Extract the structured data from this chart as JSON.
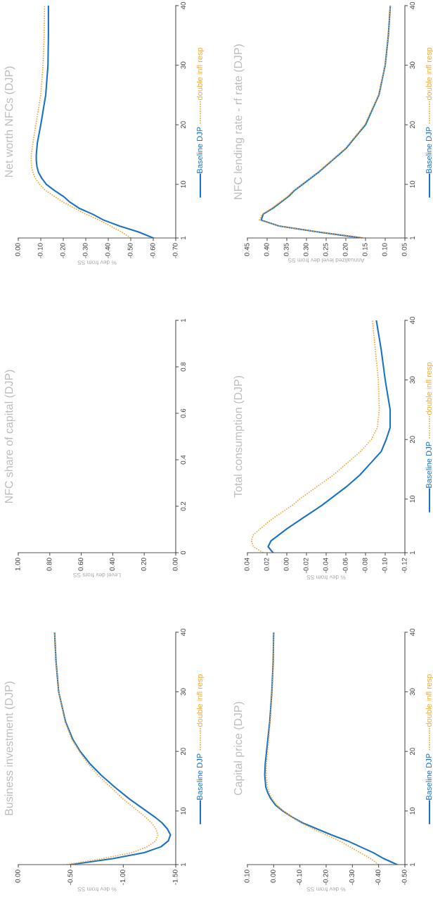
{
  "chart_data": [
    {
      "type": "line",
      "title": "Business investment (DJP)",
      "xlabel": "% dev from SS",
      "legend": "right",
      "ylim": [
        1,
        40
      ],
      "yticks": [
        1,
        10,
        20,
        30,
        40
      ],
      "xlim": [
        0,
        -1.5
      ],
      "xticks": [
        {
          "value": -1.5,
          "label": "-1.50"
        },
        {
          "value": -1.0,
          "label": "-1.00"
        },
        {
          "value": -0.5,
          "label": "-0.50"
        },
        {
          "value": 0,
          "label": "0.00"
        }
      ],
      "series": [
        {
          "name": "Baseline DJP",
          "color": "#1b72c2",
          "line_style": "solid",
          "x": [
            -0.5,
            -0.9,
            -1.2,
            -1.36,
            -1.43,
            -1.45,
            -1.42,
            -1.37,
            -1.3,
            -1.22,
            -1.06,
            -0.92,
            -0.79,
            -0.68,
            -0.59,
            -0.52,
            -0.45,
            -0.385,
            -0.36,
            -0.346
          ],
          "values": [
            1,
            2,
            3,
            4,
            5,
            6,
            7,
            8,
            9,
            10,
            12,
            14,
            16,
            18,
            20,
            22,
            25,
            30,
            35,
            40
          ]
        },
        {
          "name": "double infl resp",
          "color": "#f2a93b",
          "line_style": "dotted",
          "x": [
            -0.46,
            -0.8,
            -1.08,
            -1.23,
            -1.31,
            -1.33,
            -1.31,
            -1.27,
            -1.21,
            -1.14,
            -1.0,
            -0.88,
            -0.76,
            -0.66,
            -0.58,
            -0.51,
            -0.445,
            -0.385,
            -0.36,
            -0.346
          ],
          "values": [
            1,
            2,
            3,
            4,
            5,
            6,
            7,
            8,
            9,
            10,
            12,
            14,
            16,
            18,
            20,
            22,
            25,
            30,
            35,
            40
          ]
        }
      ]
    },
    {
      "type": "line",
      "title": "NFC share of capital (DJP)",
      "xlabel": "Level dev from SS",
      "ylim": [
        0,
        1
      ],
      "yticks": [
        0,
        0.2,
        0.4,
        0.6,
        0.8,
        1
      ],
      "xlim": [
        1,
        0
      ],
      "xticks": [
        {
          "value": 0,
          "label": "0.00"
        },
        {
          "value": 0.2,
          "label": "0.20"
        },
        {
          "value": 0.4,
          "label": "0.40"
        },
        {
          "value": 0.6,
          "label": "0.60"
        },
        {
          "value": 0.8,
          "label": "0.80"
        },
        {
          "value": 1,
          "label": "1.00"
        }
      ]
    },
    {
      "type": "line",
      "title": "Net worth NFCs (DJP)",
      "xlabel": "% dev from SS",
      "legend": "right",
      "ylim": [
        1,
        40
      ],
      "yticks": [
        1,
        10,
        20,
        30,
        40
      ],
      "xlim": [
        0,
        -0.7
      ],
      "xticks": [
        {
          "value": -0.7,
          "label": "-0.70"
        },
        {
          "value": -0.6,
          "label": "-0.60"
        },
        {
          "value": -0.5,
          "label": "-0.50"
        },
        {
          "value": -0.4,
          "label": "-0.40"
        },
        {
          "value": -0.3,
          "label": "-0.30"
        },
        {
          "value": -0.2,
          "label": "-0.20"
        },
        {
          "value": -0.1,
          "label": "-0.10"
        },
        {
          "value": 0,
          "label": "0.00"
        }
      ],
      "series": [
        {
          "name": "Baseline DJP",
          "color": "#1b72c2",
          "line_style": "solid",
          "x": [
            -0.6,
            -0.535,
            -0.45,
            -0.38,
            -0.33,
            -0.27,
            -0.23,
            -0.2,
            -0.16,
            -0.125,
            -0.105,
            -0.09,
            -0.083,
            -0.08,
            -0.08,
            -0.085,
            -0.1,
            -0.122,
            -0.132,
            -0.134,
            -0.134
          ],
          "values": [
            1,
            2,
            3,
            4,
            5,
            6,
            7,
            8,
            9,
            10,
            11,
            12,
            13,
            14,
            15,
            17,
            20,
            25,
            30,
            35,
            40
          ]
        },
        {
          "name": "double infl resp",
          "color": "#f2a93b",
          "line_style": "dotted",
          "x": [
            -0.5,
            -0.46,
            -0.41,
            -0.36,
            -0.3,
            -0.25,
            -0.2,
            -0.16,
            -0.12,
            -0.095,
            -0.076,
            -0.065,
            -0.059,
            -0.057,
            -0.058,
            -0.065,
            -0.078,
            -0.1,
            -0.11,
            -0.115,
            -0.117
          ],
          "values": [
            1,
            2,
            3,
            4,
            5,
            6,
            7,
            8,
            9,
            10,
            11,
            12,
            13,
            14,
            15,
            17,
            20,
            25,
            30,
            35,
            40
          ]
        }
      ]
    },
    {
      "type": "line",
      "title": "Capital price (DJP)",
      "xlabel": "% dev from SS",
      "legend": "right",
      "ylim": [
        1,
        40
      ],
      "yticks": [
        1,
        10,
        20,
        30,
        40
      ],
      "xlim": [
        0.1,
        -0.5
      ],
      "xticks": [
        {
          "value": -0.5,
          "label": "-0.50"
        },
        {
          "value": -0.4,
          "label": "-0.40"
        },
        {
          "value": -0.3,
          "label": "-0.30"
        },
        {
          "value": -0.2,
          "label": "-0.20"
        },
        {
          "value": -0.1,
          "label": "-0.10"
        },
        {
          "value": 0,
          "label": "0.00"
        },
        {
          "value": 0.1,
          "label": "0.10"
        }
      ],
      "series": [
        {
          "name": "Baseline DJP",
          "color": "#1b72c2",
          "line_style": "solid",
          "x": [
            -0.47,
            -0.42,
            -0.38,
            -0.33,
            -0.28,
            -0.22,
            -0.165,
            -0.11,
            -0.07,
            -0.035,
            -0.007,
            0.01,
            0.022,
            0.03,
            0.034,
            0.032,
            0.027,
            0.015,
            0.007,
            0.002,
            0.0
          ],
          "values": [
            1,
            2,
            3,
            4,
            5,
            6,
            7,
            8,
            9,
            10,
            11,
            12,
            13,
            14,
            16,
            18,
            20,
            25,
            30,
            35,
            40
          ]
        },
        {
          "name": "double infl resp",
          "color": "#f2a93b",
          "line_style": "dotted",
          "x": [
            -0.4,
            -0.37,
            -0.33,
            -0.29,
            -0.25,
            -0.2,
            -0.15,
            -0.105,
            -0.068,
            -0.038,
            -0.012,
            0.005,
            0.016,
            0.024,
            0.028,
            0.027,
            0.023,
            0.013,
            0.006,
            0.002,
            0.0
          ],
          "values": [
            1,
            2,
            3,
            4,
            5,
            6,
            7,
            8,
            9,
            10,
            11,
            12,
            13,
            14,
            16,
            18,
            20,
            25,
            30,
            35,
            40
          ]
        }
      ]
    },
    {
      "type": "line",
      "title": "Total consumption (DJP)",
      "xlabel": "% dev from SS",
      "legend": "right",
      "ylim": [
        1,
        40
      ],
      "yticks": [
        1,
        10,
        20,
        30,
        40
      ],
      "xlim": [
        0.04,
        -0.12
      ],
      "xticks": [
        {
          "value": -0.12,
          "label": "-0.12"
        },
        {
          "value": -0.1,
          "label": "-0.10"
        },
        {
          "value": -0.08,
          "label": "-0.08"
        },
        {
          "value": -0.06,
          "label": "-0.06"
        },
        {
          "value": -0.04,
          "label": "-0.04"
        },
        {
          "value": -0.02,
          "label": "-0.02"
        },
        {
          "value": 0,
          "label": "0.00"
        },
        {
          "value": 0.02,
          "label": "0.02"
        },
        {
          "value": 0.04,
          "label": "0.04"
        }
      ],
      "series": [
        {
          "name": "Baseline DJP",
          "color": "#1b72c2",
          "line_style": "solid",
          "x": [
            0.014,
            0.019,
            0.016,
            0.008,
            0.0,
            -0.009,
            -0.018,
            -0.027,
            -0.036,
            -0.044,
            -0.06,
            -0.074,
            -0.085,
            -0.096,
            -0.101,
            -0.105,
            -0.105,
            -0.1,
            -0.096,
            -0.091
          ],
          "values": [
            1,
            2,
            3,
            4,
            5,
            6,
            7,
            8,
            9,
            10,
            12,
            14,
            16,
            18,
            20,
            22,
            25,
            30,
            35,
            40
          ]
        },
        {
          "name": "double infl resp",
          "color": "#f2a93b",
          "line_style": "dotted",
          "x": [
            0.024,
            0.034,
            0.036,
            0.034,
            0.027,
            0.02,
            0.012,
            0.003,
            -0.006,
            -0.013,
            -0.03,
            -0.047,
            -0.061,
            -0.075,
            -0.086,
            -0.092,
            -0.094,
            -0.093,
            -0.09,
            -0.087
          ],
          "values": [
            1,
            2,
            3,
            4,
            5,
            6,
            7,
            8,
            9,
            10,
            12,
            14,
            16,
            18,
            20,
            22,
            25,
            30,
            35,
            40
          ]
        }
      ]
    },
    {
      "type": "line",
      "title": "NFC lending rate - rf rate (DJP)",
      "xlabel": "Annualized level dev from SS",
      "legend": "right",
      "ylim": [
        1,
        40
      ],
      "yticks": [
        1,
        10,
        20,
        30,
        40
      ],
      "xlim": [
        0.45,
        0.05
      ],
      "xticks": [
        {
          "value": 0.05,
          "label": "0.05"
        },
        {
          "value": 0.1,
          "label": "0.10"
        },
        {
          "value": 0.15,
          "label": "0.15"
        },
        {
          "value": 0.2,
          "label": "0.20"
        },
        {
          "value": 0.25,
          "label": "0.25"
        },
        {
          "value": 0.3,
          "label": "0.30"
        },
        {
          "value": 0.35,
          "label": "0.35"
        },
        {
          "value": 0.4,
          "label": "0.40"
        },
        {
          "value": 0.45,
          "label": "0.45"
        }
      ],
      "series": [
        {
          "name": "Baseline DJP",
          "color": "#1b72c2",
          "line_style": "solid",
          "x": [
            0.16,
            0.27,
            0.37,
            0.415,
            0.41,
            0.385,
            0.365,
            0.345,
            0.33,
            0.31,
            0.27,
            0.235,
            0.2,
            0.175,
            0.15,
            0.116,
            0.1,
            0.092,
            0.087
          ],
          "values": [
            1,
            2,
            3,
            4,
            5,
            6,
            7,
            8,
            9,
            10,
            12,
            14,
            16,
            18,
            20,
            25,
            30,
            35,
            40
          ]
        },
        {
          "name": "double infl resp",
          "color": "#f2a93b",
          "line_style": "dotted",
          "x": [
            0.15,
            0.265,
            0.37,
            0.42,
            0.412,
            0.388,
            0.368,
            0.348,
            0.332,
            0.312,
            0.272,
            0.237,
            0.202,
            0.177,
            0.152,
            0.117,
            0.1,
            0.092,
            0.087
          ],
          "values": [
            1,
            2,
            3,
            4,
            5,
            6,
            7,
            8,
            9,
            10,
            12,
            14,
            16,
            18,
            20,
            25,
            30,
            35,
            40
          ]
        }
      ]
    }
  ]
}
